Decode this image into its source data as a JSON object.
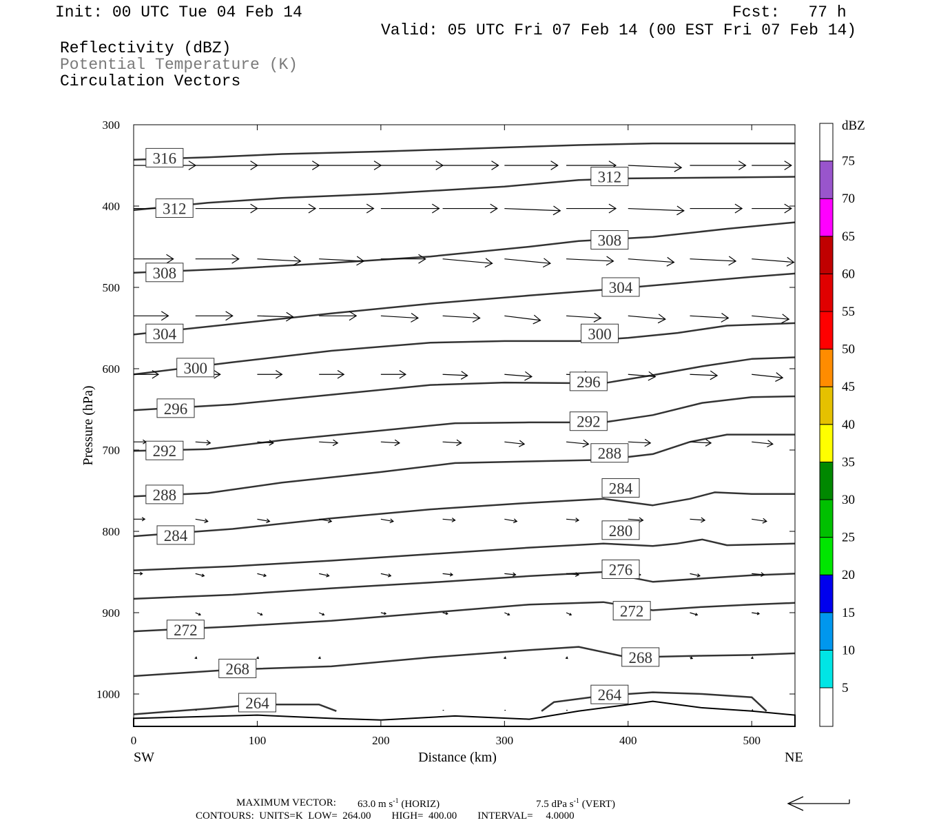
{
  "header": {
    "init": "Init: 00 UTC Tue 04 Feb 14",
    "fcst": "Fcst:   77 h",
    "valid": "Valid: 05 UTC Fri 07 Feb 14 (00 EST Fri 07 Feb 14)",
    "field1": "Reflectivity (dBZ)",
    "field2": "Potential Temperature (K)",
    "field3": "Circulation Vectors"
  },
  "footer": {
    "max_vector_label": "MAXIMUM VECTOR:",
    "max_vector_horiz": "63.0 m s",
    "horiz_tag": "(HORIZ)",
    "max_vector_vert": "7.5 dPa s",
    "vert_tag": "(VERT)",
    "contours_line": "CONTOURS:  UNITS=K  LOW=  264.00        HIGH=  400.00        INTERVAL=     4.0000"
  },
  "chart_data": {
    "type": "line",
    "xlabel": "Distance (km)",
    "ylabel": "Pressure (hPa)",
    "xlim": [
      0,
      535
    ],
    "ylim": [
      300,
      1040
    ],
    "y_scale": "linear-inverted",
    "x_ticks": [
      0,
      100,
      200,
      300,
      400,
      500
    ],
    "y_ticks": [
      300,
      400,
      500,
      600,
      700,
      800,
      900,
      1000
    ],
    "left_end_label": "SW",
    "right_end_label": "NE",
    "contour_color": "#333333",
    "vector_color": "#000000",
    "isentropes": [
      {
        "name": "316",
        "points": [
          [
            0,
            343
          ],
          [
            60,
            340
          ],
          [
            120,
            336
          ],
          [
            200,
            333
          ],
          [
            300,
            328
          ],
          [
            360,
            325
          ],
          [
            420,
            323
          ],
          [
            535,
            323
          ]
        ]
      },
      {
        "name": "312",
        "points": [
          [
            0,
            405
          ],
          [
            60,
            396
          ],
          [
            120,
            390
          ],
          [
            200,
            385
          ],
          [
            300,
            376
          ],
          [
            360,
            368
          ],
          [
            400,
            366
          ],
          [
            535,
            364
          ]
        ]
      },
      {
        "name": "308",
        "points": [
          [
            0,
            482
          ],
          [
            80,
            477
          ],
          [
            160,
            470
          ],
          [
            240,
            462
          ],
          [
            320,
            450
          ],
          [
            360,
            443
          ],
          [
            420,
            438
          ],
          [
            480,
            428
          ],
          [
            535,
            420
          ]
        ]
      },
      {
        "name": "304",
        "points": [
          [
            0,
            558
          ],
          [
            80,
            545
          ],
          [
            160,
            532
          ],
          [
            240,
            520
          ],
          [
            320,
            510
          ],
          [
            380,
            503
          ],
          [
            440,
            495
          ],
          [
            500,
            487
          ],
          [
            535,
            483
          ]
        ]
      },
      {
        "name": "300",
        "points": [
          [
            0,
            607
          ],
          [
            80,
            592
          ],
          [
            160,
            578
          ],
          [
            240,
            568
          ],
          [
            300,
            566
          ],
          [
            360,
            566
          ],
          [
            400,
            562
          ],
          [
            440,
            556
          ],
          [
            480,
            547
          ],
          [
            535,
            544
          ]
        ]
      },
      {
        "name": "296",
        "points": [
          [
            0,
            651
          ],
          [
            80,
            644
          ],
          [
            160,
            632
          ],
          [
            240,
            620
          ],
          [
            300,
            617
          ],
          [
            380,
            618
          ],
          [
            420,
            608
          ],
          [
            460,
            597
          ],
          [
            500,
            588
          ],
          [
            535,
            586
          ]
        ]
      },
      {
        "name": "292",
        "points": [
          [
            0,
            701
          ],
          [
            60,
            699
          ],
          [
            120,
            688
          ],
          [
            200,
            676
          ],
          [
            260,
            667
          ],
          [
            320,
            666
          ],
          [
            380,
            666
          ],
          [
            420,
            657
          ],
          [
            460,
            642
          ],
          [
            500,
            635
          ],
          [
            535,
            634
          ]
        ]
      },
      {
        "name": "288",
        "points": [
          [
            0,
            757
          ],
          [
            60,
            753
          ],
          [
            120,
            740
          ],
          [
            200,
            727
          ],
          [
            260,
            716
          ],
          [
            320,
            714
          ],
          [
            380,
            712
          ],
          [
            420,
            705
          ],
          [
            450,
            690
          ],
          [
            480,
            681
          ],
          [
            535,
            681
          ]
        ]
      },
      {
        "name": "284",
        "points": [
          [
            0,
            806
          ],
          [
            80,
            797
          ],
          [
            160,
            784
          ],
          [
            240,
            773
          ],
          [
            320,
            765
          ],
          [
            380,
            760
          ],
          [
            420,
            768
          ],
          [
            450,
            760
          ],
          [
            470,
            752
          ],
          [
            500,
            754
          ],
          [
            535,
            754
          ]
        ]
      },
      {
        "name": "280",
        "points": [
          [
            0,
            848
          ],
          [
            80,
            843
          ],
          [
            160,
            836
          ],
          [
            240,
            828
          ],
          [
            320,
            820
          ],
          [
            380,
            815
          ],
          [
            420,
            818
          ],
          [
            440,
            815
          ],
          [
            460,
            810
          ],
          [
            480,
            817
          ],
          [
            535,
            815
          ]
        ]
      },
      {
        "name": "276",
        "points": [
          [
            0,
            883
          ],
          [
            80,
            878
          ],
          [
            160,
            870
          ],
          [
            240,
            863
          ],
          [
            320,
            855
          ],
          [
            380,
            850
          ],
          [
            420,
            862
          ],
          [
            460,
            858
          ],
          [
            500,
            854
          ],
          [
            535,
            852
          ]
        ]
      },
      {
        "name": "272",
        "points": [
          [
            0,
            923
          ],
          [
            80,
            917
          ],
          [
            160,
            910
          ],
          [
            240,
            900
          ],
          [
            320,
            890
          ],
          [
            380,
            887
          ],
          [
            420,
            897
          ],
          [
            460,
            893
          ],
          [
            500,
            890
          ],
          [
            535,
            888
          ]
        ]
      },
      {
        "name": "268",
        "points": [
          [
            0,
            978
          ],
          [
            80,
            970
          ],
          [
            160,
            966
          ],
          [
            240,
            955
          ],
          [
            320,
            946
          ],
          [
            360,
            942
          ],
          [
            400,
            955
          ],
          [
            460,
            953
          ],
          [
            500,
            952
          ],
          [
            535,
            950
          ]
        ]
      },
      {
        "name": "264",
        "points": [
          [
            0,
            1025
          ],
          [
            60,
            1018
          ],
          [
            100,
            1013
          ],
          [
            150,
            1013
          ],
          [
            164,
            1021
          ]
        ]
      },
      {
        "name": "264",
        "points": [
          [
            330,
            1021
          ],
          [
            340,
            1010
          ],
          [
            380,
            1002
          ],
          [
            420,
            998
          ],
          [
            460,
            1000
          ],
          [
            500,
            1004
          ],
          [
            512,
            1021
          ]
        ]
      }
    ],
    "contour_labels": [
      {
        "text": "316",
        "x": 25,
        "p": 341
      },
      {
        "text": "312",
        "x": 33,
        "p": 403
      },
      {
        "text": "312",
        "x": 385,
        "p": 364
      },
      {
        "text": "308",
        "x": 25,
        "p": 482
      },
      {
        "text": "308",
        "x": 385,
        "p": 442
      },
      {
        "text": "304",
        "x": 25,
        "p": 557
      },
      {
        "text": "304",
        "x": 394,
        "p": 500
      },
      {
        "text": "300",
        "x": 50,
        "p": 599
      },
      {
        "text": "300",
        "x": 377,
        "p": 557
      },
      {
        "text": "296",
        "x": 34,
        "p": 649
      },
      {
        "text": "296",
        "x": 368,
        "p": 616
      },
      {
        "text": "292",
        "x": 25,
        "p": 701
      },
      {
        "text": "292",
        "x": 368,
        "p": 665
      },
      {
        "text": "288",
        "x": 385,
        "p": 704
      },
      {
        "text": "288",
        "x": 25,
        "p": 755
      },
      {
        "text": "284",
        "x": 394,
        "p": 747
      },
      {
        "text": "284",
        "x": 34,
        "p": 805
      },
      {
        "text": "280",
        "x": 394,
        "p": 799
      },
      {
        "text": "276",
        "x": 394,
        "p": 847
      },
      {
        "text": "272",
        "x": 403,
        "p": 898
      },
      {
        "text": "272",
        "x": 42,
        "p": 921
      },
      {
        "text": "268",
        "x": 410,
        "p": 955
      },
      {
        "text": "268",
        "x": 84,
        "p": 969
      },
      {
        "text": "264",
        "x": 100,
        "p": 1011
      },
      {
        "text": "264",
        "x": 385,
        "p": 1001
      }
    ],
    "terrain_km": [
      0,
      100,
      160,
      200,
      260,
      320,
      360,
      390,
      420,
      460,
      500,
      535
    ],
    "terrain_hpa": [
      1030,
      1026,
      1030,
      1032,
      1027,
      1031,
      1021,
      1015,
      1009,
      1017,
      1021,
      1026
    ],
    "vectors": [
      {
        "p": 350,
        "x": [
          0,
          50,
          100,
          150,
          200,
          250,
          300,
          350,
          400,
          450,
          500
        ],
        "u": [
          50,
          50,
          50,
          50,
          50,
          45,
          43,
          40,
          43,
          45,
          32
        ],
        "w": [
          0,
          0,
          0,
          0,
          0,
          0,
          0,
          0,
          -2,
          0,
          0
        ]
      },
      {
        "p": 403,
        "x": [
          0,
          50,
          100,
          150,
          200,
          250,
          300,
          350,
          400,
          450,
          500
        ],
        "u": [
          47,
          50,
          47,
          44,
          47,
          44,
          45,
          40,
          45,
          42,
          32
        ],
        "w": [
          0,
          0,
          0,
          0,
          0,
          0,
          -2,
          0,
          -2,
          0,
          0
        ]
      },
      {
        "p": 465,
        "x": [
          0,
          50,
          100,
          150,
          200,
          250,
          300,
          350,
          400,
          450,
          500
        ],
        "u": [
          32,
          35,
          35,
          36,
          36,
          40,
          37,
          38,
          37,
          37,
          34
        ],
        "w": [
          0,
          0,
          -2,
          -2,
          0,
          -4,
          -4,
          -2,
          -3,
          -2,
          -3
        ]
      },
      {
        "p": 535,
        "x": [
          0,
          50,
          100,
          150,
          200,
          250,
          300,
          350,
          400,
          450,
          500
        ],
        "u": [
          28,
          30,
          29,
          30,
          30,
          30,
          29,
          28,
          30,
          31,
          30
        ],
        "w": [
          0,
          0,
          -1,
          0,
          -2,
          -2,
          -4,
          -2,
          -3,
          -2,
          -3
        ]
      },
      {
        "p": 607,
        "x": [
          0,
          50,
          100,
          150,
          200,
          250,
          300,
          350,
          400,
          450,
          500
        ],
        "u": [
          20,
          20,
          20,
          20,
          20,
          20,
          22,
          20,
          22,
          22,
          25
        ],
        "w": [
          0,
          0,
          0,
          0,
          0,
          -1,
          -2,
          -1,
          -2,
          -1,
          -3
        ]
      },
      {
        "p": 690,
        "x": [
          0,
          50,
          100,
          150,
          200,
          250,
          300,
          350,
          400,
          450,
          500
        ],
        "u": [
          10,
          12,
          13,
          15,
          15,
          15,
          16,
          18,
          18,
          17,
          17
        ],
        "w": [
          0,
          -1,
          -1,
          -1,
          -1,
          -1,
          -2,
          -2,
          -1,
          -1,
          -2
        ]
      },
      {
        "p": 785,
        "x": [
          0,
          50,
          100,
          150,
          200,
          250,
          300,
          350,
          400,
          450,
          500
        ],
        "u": [
          9,
          10,
          10,
          10,
          10,
          10,
          10,
          10,
          12,
          12,
          12
        ],
        "w": [
          0,
          -2,
          -2,
          -2,
          -2,
          -1,
          -2,
          -1,
          -1,
          -1,
          -2
        ]
      },
      {
        "p": 852,
        "x": [
          0,
          50,
          100,
          150,
          200,
          250,
          300,
          350,
          400,
          450,
          500
        ],
        "u": [
          7,
          7,
          7,
          8,
          8,
          8,
          9,
          10,
          10,
          8,
          10
        ],
        "w": [
          0,
          -2,
          -2,
          -2,
          -2,
          -1,
          -1,
          -1,
          -1,
          -2,
          -1
        ]
      },
      {
        "p": 900,
        "x": [
          50,
          100,
          150,
          200,
          250,
          300,
          350,
          400,
          450,
          500
        ],
        "u": [
          4,
          4,
          4,
          4,
          4,
          4,
          4,
          4,
          6,
          6
        ],
        "w": [
          -2,
          -2,
          -2,
          -1,
          -1,
          -2,
          -2,
          -1,
          -2,
          -1
        ]
      },
      {
        "p": 955,
        "x": [
          50,
          100,
          150,
          300,
          350,
          450,
          500
        ],
        "u": [
          1,
          1,
          1,
          1,
          1,
          2,
          1
        ],
        "w": [
          -1,
          -1,
          -1,
          -1,
          -1,
          -1,
          -1
        ]
      },
      {
        "p": 1020,
        "x": [
          50,
          250,
          300,
          350,
          500
        ],
        "u": [
          1,
          1,
          1,
          1,
          1
        ],
        "w": [
          0,
          0,
          0,
          0,
          -1
        ]
      }
    ],
    "colorbar": {
      "label": "dBZ",
      "levels": [
        "5",
        "10",
        "15",
        "20",
        "25",
        "30",
        "35",
        "40",
        "45",
        "50",
        "55",
        "60",
        "65",
        "70",
        "75"
      ],
      "colors": [
        "#00e5e5",
        "#0097ee",
        "#0000ee",
        "#00e600",
        "#00c000",
        "#008800",
        "#ffff00",
        "#e5c100",
        "#ff8c00",
        "#ff0000",
        "#e00000",
        "#c00000",
        "#ff00ff",
        "#9955cc",
        "#ffffff"
      ]
    },
    "reference_vector": {
      "u_ms": 63.0
    }
  }
}
